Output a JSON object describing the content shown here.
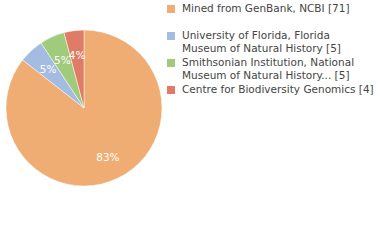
{
  "chart_data": {
    "type": "pie",
    "categories": [
      "Mined from GenBank, NCBI [71]",
      "University of Florida, Florida Museum of Natural History [5]",
      "Smithsonian Institution, National Museum of Natural History... [5]",
      "Centre for Biodiversity Genomics [4]"
    ],
    "values": [
      83,
      5,
      5,
      4
    ],
    "value_labels": [
      "83%",
      "5%",
      "5%",
      "4%"
    ],
    "colors": [
      "#f0ad73",
      "#a4bbe2",
      "#a0cb7a",
      "#e07c65"
    ],
    "data_labels": true,
    "legend": "right"
  }
}
